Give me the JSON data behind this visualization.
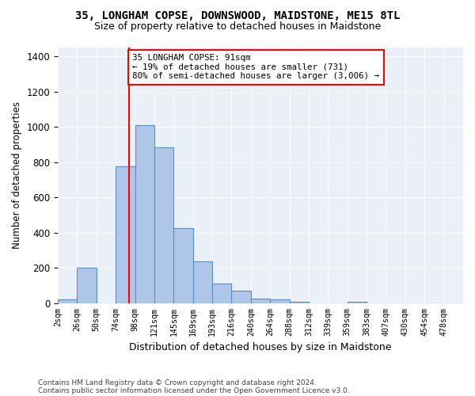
{
  "title": "35, LONGHAM COPSE, DOWNSWOOD, MAIDSTONE, ME15 8TL",
  "subtitle": "Size of property relative to detached houses in Maidstone",
  "xlabel": "Distribution of detached houses by size in Maidstone",
  "ylabel": "Number of detached properties",
  "footnote1": "Contains HM Land Registry data © Crown copyright and database right 2024.",
  "footnote2": "Contains public sector information licensed under the Open Government Licence v3.0.",
  "bar_labels": [
    "2sqm",
    "26sqm",
    "50sqm",
    "74sqm",
    "98sqm",
    "121sqm",
    "145sqm",
    "169sqm",
    "193sqm",
    "216sqm",
    "240sqm",
    "264sqm",
    "288sqm",
    "312sqm",
    "339sqm",
    "359sqm",
    "383sqm",
    "407sqm",
    "430sqm",
    "454sqm",
    "478sqm"
  ],
  "bar_values": [
    20,
    200,
    0,
    775,
    1010,
    885,
    425,
    235,
    110,
    70,
    25,
    20,
    10,
    0,
    0,
    10,
    0,
    0,
    0,
    0,
    0
  ],
  "bar_color": "#aec6e8",
  "bar_edgecolor": "#5a8fc0",
  "background_color": "#eaf0f8",
  "grid_color": "#ffffff",
  "vline_x": 3,
  "vline_color": "red",
  "annotation_text": "35 LONGHAM COPSE: 91sqm\n← 19% of detached houses are smaller (731)\n80% of semi-detached houses are larger (3,006) →",
  "annotation_box_color": "red",
  "ylim": [
    0,
    1450
  ],
  "n_bars": 21
}
